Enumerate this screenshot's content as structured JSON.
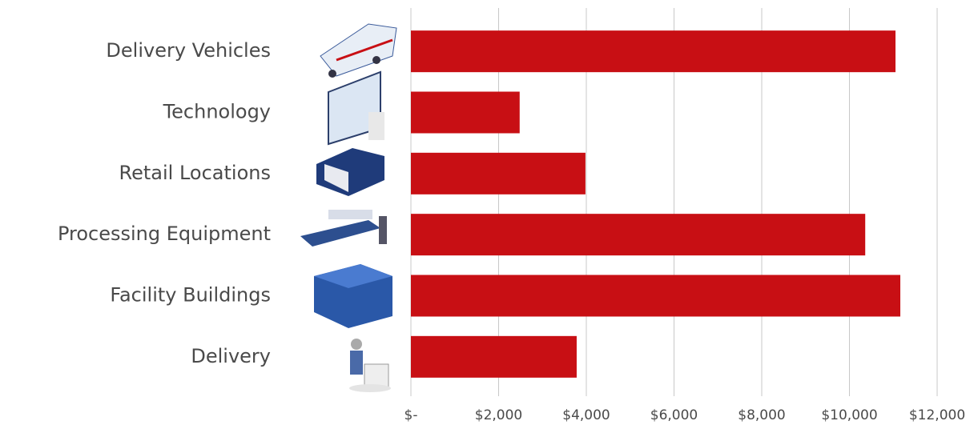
{
  "chart_data": {
    "type": "bar",
    "orientation": "horizontal",
    "categories": [
      "Delivery Vehicles",
      "Technology",
      "Retail Locations",
      "Processing Equipment",
      "Facility Buildings",
      "Delivery"
    ],
    "values": [
      11050,
      2480,
      3980,
      10360,
      11160,
      3780
    ],
    "color": "#c80f14",
    "xlim": [
      0,
      12000
    ],
    "xticks": [
      {
        "value": 0,
        "label": "$-"
      },
      {
        "value": 2000,
        "label": "$2,000"
      },
      {
        "value": 4000,
        "label": "$4,000"
      },
      {
        "value": 6000,
        "label": "$6,000"
      },
      {
        "value": 8000,
        "label": "$8,000"
      },
      {
        "value": 10000,
        "label": "$10,000"
      },
      {
        "value": 12000,
        "label": "$12,000"
      }
    ],
    "grid": true
  }
}
